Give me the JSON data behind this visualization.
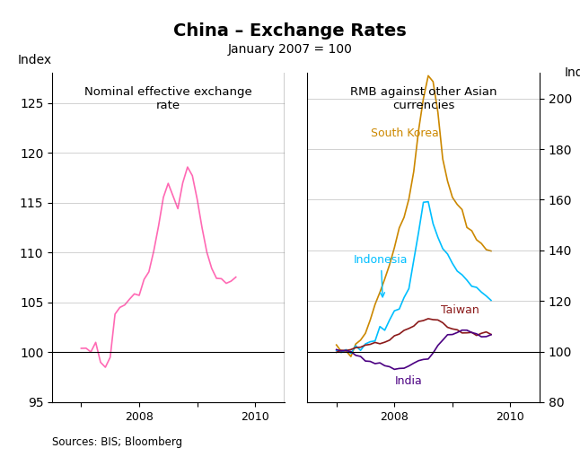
{
  "title": "China – Exchange Rates",
  "subtitle": "January 2007 = 100",
  "left_panel_title": "Nominal effective exchange\nrate",
  "right_panel_title": "RMB against other Asian\ncurrencies",
  "left_ylabel": "Index",
  "right_ylabel": "Index",
  "source": "Sources: BIS; Bloomberg",
  "left_ylim": [
    95,
    128
  ],
  "right_ylim": [
    80,
    210
  ],
  "left_yticks": [
    95,
    100,
    105,
    110,
    115,
    120,
    125
  ],
  "right_yticks": [
    80,
    100,
    120,
    140,
    160,
    180,
    200
  ],
  "colors": {
    "neer": "#FF69B4",
    "south_korea": "#CC8800",
    "indonesia": "#00BFFF",
    "taiwan": "#8B1A1A",
    "india": "#4B0082"
  },
  "annotations": {
    "south_korea": {
      "text": "South Korea",
      "color": "#CC8800"
    },
    "indonesia": {
      "text": "Indonesia",
      "color": "#00BFFF"
    },
    "taiwan": {
      "text": "Taiwan",
      "color": "#8B1A1A"
    },
    "india": {
      "text": "India",
      "color": "#4B0082"
    }
  }
}
